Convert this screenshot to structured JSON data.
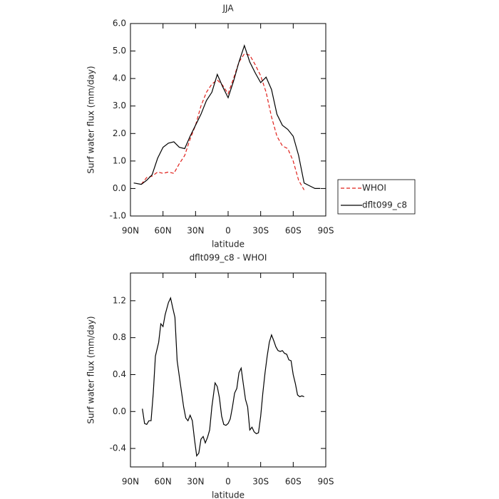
{
  "chart_data": [
    {
      "type": "line",
      "title": "JJA",
      "xlabel": "latitude",
      "ylabel": "Surf water flux (mm/day)",
      "x": [
        87,
        80,
        75,
        70,
        65,
        60,
        55,
        50,
        45,
        40,
        35,
        30,
        25,
        20,
        15,
        10,
        5,
        0,
        -5,
        -10,
        -15,
        -20,
        -25,
        -30,
        -35,
        -40,
        -45,
        -50,
        -55,
        -60,
        -65,
        -70,
        -75,
        -80,
        -85
      ],
      "series": [
        {
          "name": "WHOI",
          "color": "#e0201b",
          "dash": true,
          "values": [
            null,
            0.15,
            0.4,
            0.45,
            0.6,
            0.55,
            0.6,
            0.55,
            0.9,
            1.2,
            1.8,
            2.3,
            3.0,
            3.5,
            3.8,
            3.95,
            3.75,
            3.45,
            4.0,
            4.6,
            4.9,
            4.85,
            4.5,
            4.1,
            3.5,
            2.6,
            1.9,
            1.55,
            1.45,
            1.0,
            0.3,
            -0.05,
            null,
            null,
            null
          ]
        },
        {
          "name": "dflt099_c8",
          "color": "#000000",
          "dash": false,
          "values": [
            0.2,
            0.15,
            0.3,
            0.5,
            1.1,
            1.5,
            1.65,
            1.7,
            1.5,
            1.45,
            1.9,
            2.3,
            2.7,
            3.2,
            3.5,
            4.15,
            3.7,
            3.3,
            3.9,
            4.6,
            5.2,
            4.6,
            4.2,
            3.85,
            4.05,
            3.6,
            2.7,
            2.3,
            2.15,
            1.9,
            1.2,
            0.2,
            0.1,
            0.0,
            0.0
          ]
        }
      ],
      "xlim": [
        90,
        -90
      ],
      "xticks": [
        {
          "value": 90,
          "label": "90N"
        },
        {
          "value": 60,
          "label": "60N"
        },
        {
          "value": 30,
          "label": "30N"
        },
        0,
        {
          "value": -30,
          "label": "30S"
        },
        {
          "value": -60,
          "label": "60S"
        },
        {
          "value": -90,
          "label": "90S"
        }
      ],
      "ylim": [
        -1,
        6
      ],
      "yticks": [
        {
          "value": -1,
          "label": "-1.0"
        },
        {
          "value": 0,
          "label": "0.0"
        },
        {
          "value": 1,
          "label": "1.0"
        },
        {
          "value": 2,
          "label": "2.0"
        },
        {
          "value": 3,
          "label": "3.0"
        },
        {
          "value": 4,
          "label": "4.0"
        },
        {
          "value": 5,
          "label": "5.0"
        },
        {
          "value": 6,
          "label": "6.0"
        }
      ],
      "legend": "right"
    },
    {
      "type": "line",
      "title": "dflt099_c8 - WHOI",
      "xlabel": "latitude",
      "ylabel": "Surf water flux (mm/day)",
      "x": [
        79,
        77,
        75,
        73,
        71,
        69,
        67,
        64,
        62,
        60,
        58,
        55,
        53,
        51,
        49,
        47,
        44,
        41,
        39,
        37,
        35,
        33,
        31,
        29,
        27,
        25,
        23,
        21,
        19,
        17,
        15,
        12,
        10,
        8,
        6,
        4,
        2,
        0,
        -2,
        -4,
        -6,
        -8,
        -10,
        -12,
        -14,
        -16,
        -18,
        -20,
        -22,
        -24,
        -26,
        -28,
        -30,
        -32,
        -34,
        -36,
        -38,
        -40,
        -42,
        -44,
        -46,
        -48,
        -50,
        -52,
        -54,
        -56,
        -58,
        -60,
        -62,
        -64,
        -66,
        -68,
        -70
      ],
      "series": [
        {
          "color": "#000000",
          "values": [
            0.03,
            -0.13,
            -0.14,
            -0.1,
            -0.1,
            0.2,
            0.6,
            0.75,
            0.95,
            0.92,
            1.05,
            1.18,
            1.23,
            1.12,
            1.02,
            0.55,
            0.3,
            0.05,
            -0.07,
            -0.1,
            -0.04,
            -0.1,
            -0.3,
            -0.48,
            -0.45,
            -0.3,
            -0.27,
            -0.34,
            -0.28,
            -0.2,
            0.05,
            0.31,
            0.27,
            0.15,
            -0.05,
            -0.14,
            -0.15,
            -0.13,
            -0.08,
            0.05,
            0.2,
            0.25,
            0.42,
            0.47,
            0.3,
            0.13,
            0.05,
            -0.2,
            -0.17,
            -0.22,
            -0.24,
            -0.23,
            -0.05,
            0.2,
            0.42,
            0.6,
            0.75,
            0.83,
            0.77,
            0.7,
            0.66,
            0.65,
            0.66,
            0.63,
            0.62,
            0.56,
            0.55,
            0.4,
            0.3,
            0.18,
            0.16,
            0.17,
            0.16
          ]
        }
      ],
      "xlim": [
        90,
        -90
      ],
      "xticks": [
        {
          "value": 90,
          "label": "90N"
        },
        {
          "value": 60,
          "label": "60N"
        },
        {
          "value": 30,
          "label": "30N"
        },
        0,
        {
          "value": -30,
          "label": "30S"
        },
        {
          "value": -60,
          "label": "60S"
        },
        {
          "value": -90,
          "label": "90S"
        }
      ],
      "ylim": [
        -0.6,
        1.5
      ],
      "yticks": [
        -0.4,
        {
          "value": 0,
          "label": "0.0"
        },
        0.4,
        0.8,
        1.2
      ]
    }
  ]
}
